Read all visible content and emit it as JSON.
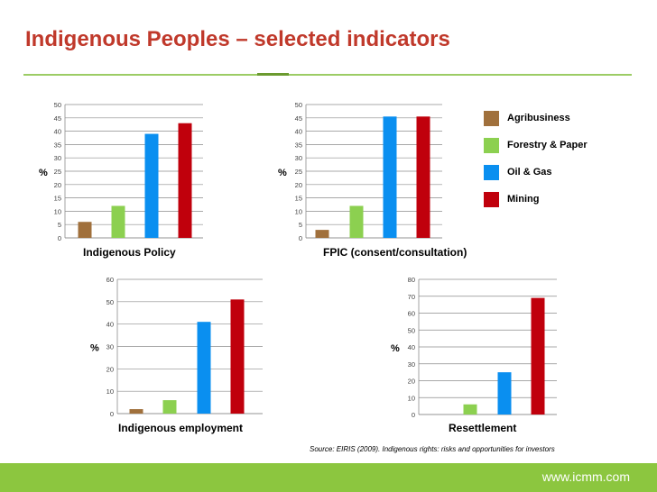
{
  "page": {
    "title": "Indigenous Peoples – selected indicators",
    "source": "Source: EIRIS (2009). Indigenous rights: risks and opportunities for investors",
    "footer_url": "www.icmm.com",
    "colors": {
      "title": "#c0392b",
      "footer": "#8cc63f",
      "rule": "#9ccc65"
    }
  },
  "legend": [
    {
      "label": "Agribusiness",
      "color": "#a0703c"
    },
    {
      "label": "Forestry & Paper",
      "color": "#8cd050"
    },
    {
      "label": "Oil & Gas",
      "color": "#0a8ff0"
    },
    {
      "label": "Mining",
      "color": "#c0000c"
    }
  ],
  "chart_data": [
    {
      "type": "bar",
      "title": "Indigenous Policy",
      "ylabel": "%",
      "categories": [
        "Agribusiness",
        "Forestry & Paper",
        "Oil & Gas",
        "Mining"
      ],
      "values": [
        6,
        12,
        39,
        43
      ],
      "ylim": [
        0,
        50
      ],
      "yticks": [
        0,
        5,
        10,
        15,
        20,
        25,
        30,
        35,
        40,
        45,
        50
      ],
      "grid": true
    },
    {
      "type": "bar",
      "title": "FPIC (consent/consultation)",
      "ylabel": "%",
      "categories": [
        "Agribusiness",
        "Forestry & Paper",
        "Oil & Gas",
        "Mining"
      ],
      "values": [
        3,
        12,
        45.5,
        45.5
      ],
      "ylim": [
        0,
        50
      ],
      "yticks": [
        0,
        5,
        10,
        15,
        20,
        25,
        30,
        35,
        40,
        45,
        50
      ],
      "grid": true
    },
    {
      "type": "bar",
      "title": "Indigenous employment",
      "ylabel": "%",
      "categories": [
        "Agribusiness",
        "Forestry & Paper",
        "Oil & Gas",
        "Mining"
      ],
      "values": [
        2,
        6,
        41,
        51
      ],
      "ylim": [
        0,
        60
      ],
      "yticks": [
        0,
        10,
        20,
        30,
        40,
        50,
        60
      ],
      "grid": true
    },
    {
      "type": "bar",
      "title": "Resettlement",
      "ylabel": "%",
      "categories": [
        "Agribusiness",
        "Forestry & Paper",
        "Oil & Gas",
        "Mining"
      ],
      "values": [
        0,
        6,
        25,
        69
      ],
      "ylim": [
        0,
        80
      ],
      "yticks": [
        0,
        10,
        20,
        30,
        40,
        50,
        60,
        70,
        80
      ],
      "grid": true
    }
  ]
}
